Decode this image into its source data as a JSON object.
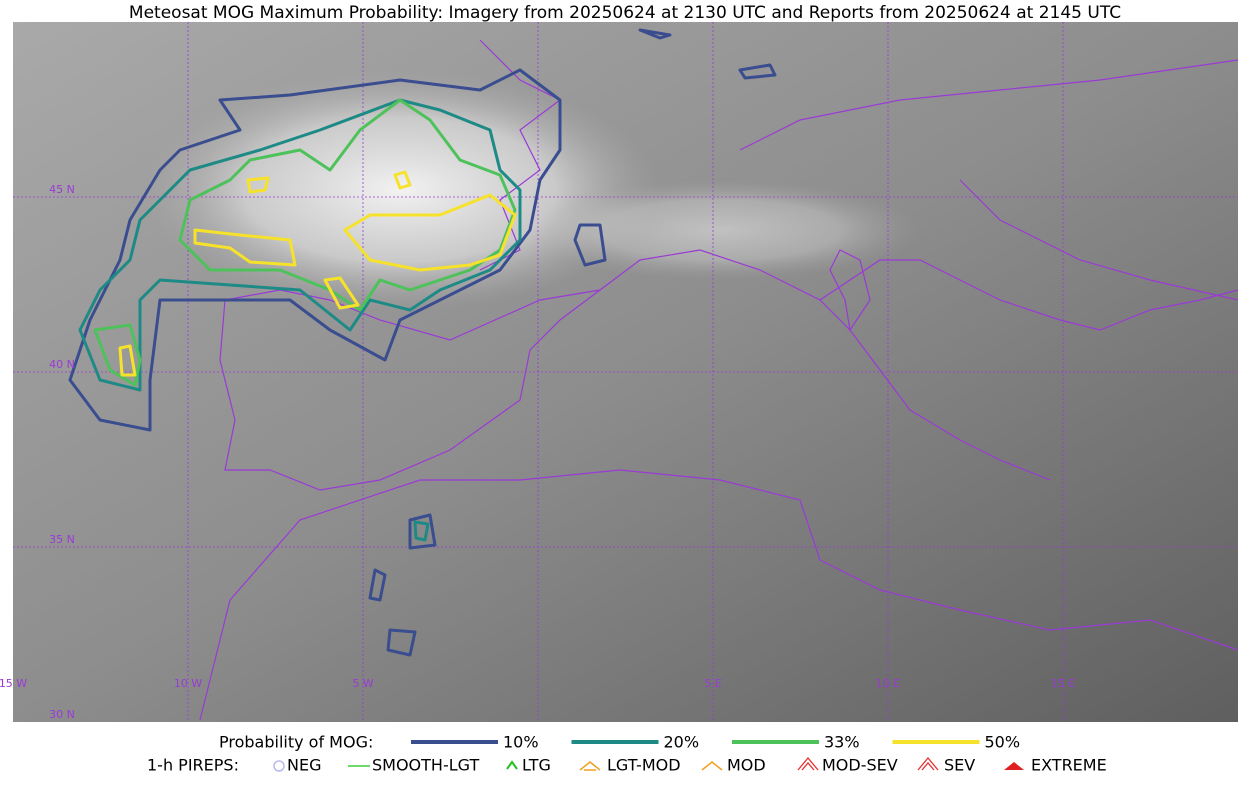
{
  "header": {
    "title": "Meteosat MOG Maximum Probability: Imagery from 20250624 at 2130 UTC and Reports from 20250624 at 2145 UTC"
  },
  "map": {
    "lat_labels": [
      "45 N",
      "40 N",
      "35 N",
      "30 N"
    ],
    "lon_labels": [
      "15 W",
      "10 W",
      "5 W",
      "5 E",
      "10 E",
      "15 E"
    ]
  },
  "legend": {
    "probability": {
      "label": "Probability of MOG:",
      "levels": [
        {
          "label": "10%",
          "color": "#3a4d8f"
        },
        {
          "label": "20%",
          "color": "#1e8a86"
        },
        {
          "label": "33%",
          "color": "#4ec25a"
        },
        {
          "label": "50%",
          "color": "#f6e22a"
        }
      ]
    },
    "pireps": {
      "label": "1-h PIREPS:",
      "items": [
        "NEG",
        "SMOOTH-LGT",
        "LTG",
        "LGT-MOD",
        "MOD",
        "MOD-SEV",
        "SEV",
        "EXTREME"
      ]
    }
  }
}
